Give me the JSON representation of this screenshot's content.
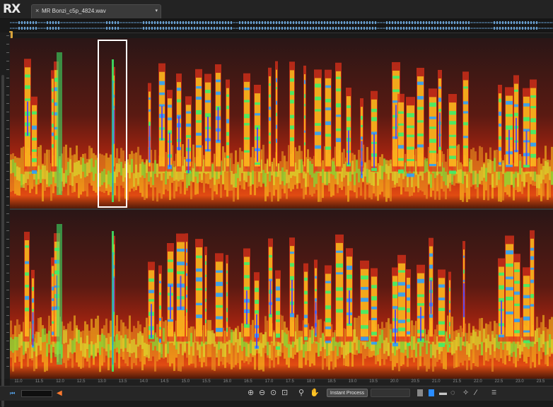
{
  "app": {
    "logo": "RX"
  },
  "tab": {
    "title": "MR Bonzi_c5p_4824.wav",
    "close": "×",
    "menu": "▾"
  },
  "timeline": {
    "labels": [
      "11.0",
      "11.5",
      "12.0",
      "12.5",
      "13.0",
      "13.5",
      "14.0",
      "14.5",
      "15.0",
      "15.5",
      "16.0",
      "16.5",
      "17.0",
      "17.5",
      "18.0",
      "18.5",
      "19.0",
      "19.5",
      "20.0",
      "20.5",
      "21.0",
      "21.5",
      "22.0",
      "22.5",
      "23.0",
      "23.5"
    ]
  },
  "toolbar": {
    "instant_process": "Instant Process",
    "disabled_button": "",
    "icons": [
      "zoom-in-icon",
      "zoom-out-icon",
      "zoom-selection-icon",
      "zoom-fit-icon",
      "magnify-icon",
      "hand-icon"
    ],
    "tools": [
      "time-selection-icon",
      "rect-selection-icon",
      "freehand-selection-icon",
      "lasso-icon",
      "magic-wand-icon",
      "brush-icon"
    ]
  },
  "colors": {
    "accent": "#5ab0ff",
    "selection": "#ffffff",
    "handle": "#d8a23a",
    "speaker": "#ff7a2e"
  }
}
